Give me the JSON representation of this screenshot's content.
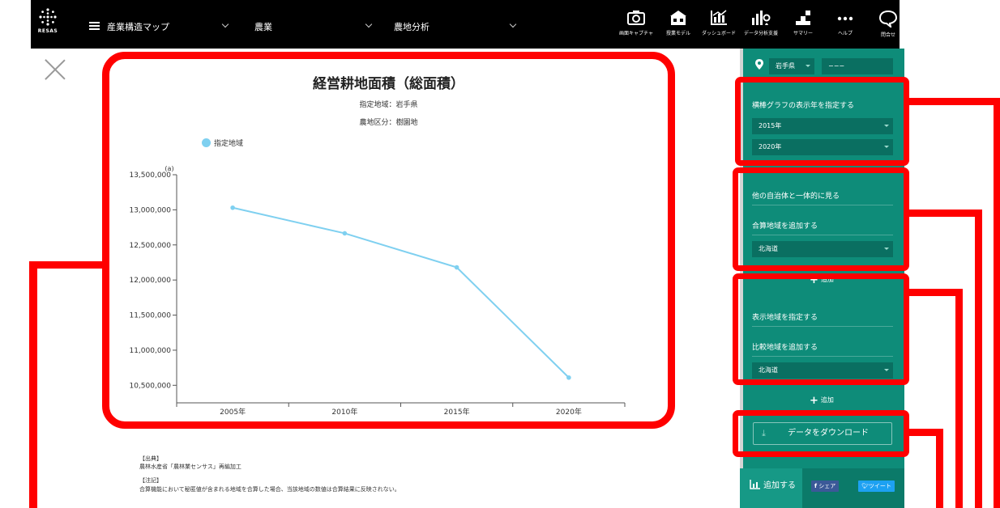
{
  "header": {
    "logo_text": "RESAS",
    "menu_title": "産業構造マップ",
    "select_industry": "農業",
    "select_analysis": "農地分析",
    "tools": [
      {
        "label": "画面キャプチャ",
        "icon": "camera-icon"
      },
      {
        "label": "授業モデル",
        "icon": "school-icon"
      },
      {
        "label": "ダッシュボード",
        "icon": "dashboard-icon"
      },
      {
        "label": "データ分析支援",
        "icon": "analysis-icon"
      },
      {
        "label": "サマリー",
        "icon": "summary-icon"
      },
      {
        "label": "ヘルプ",
        "icon": "more-icon"
      },
      {
        "label": "問合せ",
        "icon": "chat-icon"
      }
    ]
  },
  "chart_panel": {
    "title": "経営耕地面積（総面積）",
    "region_line": "指定地域：岩手県",
    "category_line": "農地区分：樹園地",
    "legend": "指定地域"
  },
  "chart_data": {
    "type": "line",
    "title": "経営耕地面積（総面積）",
    "ylabel": "(a)",
    "categories": [
      "2005年",
      "2010年",
      "2015年",
      "2020年"
    ],
    "series": [
      {
        "name": "指定地域",
        "values": [
          13030000,
          12665000,
          12180000,
          10610000
        ],
        "color": "#7fd0f0"
      }
    ],
    "ylim": [
      10250000,
      13500000
    ],
    "yticks": [
      13500000,
      13000000,
      12500000,
      12000000,
      11500000,
      11000000,
      10500000
    ],
    "ytick_labels": [
      "13,500,000",
      "13,000,000",
      "12,500,000",
      "12,000,000",
      "11,500,000",
      "11,000,000",
      "10,500,000"
    ],
    "grid": false
  },
  "notes": {
    "source_heading": "【出典】",
    "source_text": "農林水産省「農林業センサス」再編加工",
    "note_heading": "【注記】",
    "note_text": "合算機能において秘匿値が含まれる地域を合算した場合、当該地域の数値は合算結果に反映されない。"
  },
  "sidebar": {
    "prefecture": "岩手県",
    "city": "−−−",
    "year_heading": "横棒グラフの表示年を指定する",
    "year_from": "2015年",
    "year_to": "2020年",
    "merge_heading": "他の自治体と一体的に見る",
    "merge_add_label": "合算地域を追加する",
    "merge_region": "北海道",
    "add_label": "追加",
    "display_heading": "表示地域を指定する",
    "compare_add_label": "比較地域を追加する",
    "compare_region": "北海道",
    "add_label_2": "追加",
    "download_label": "データをダウンロード",
    "add_button": "追加する",
    "share_label": "シェア",
    "tweet_label": "ツイート"
  },
  "colors": {
    "header_bg": "#000000",
    "sidebar_bg": "#0e8c79",
    "series": "#7fd0f0",
    "highlight": "#ff0000"
  }
}
